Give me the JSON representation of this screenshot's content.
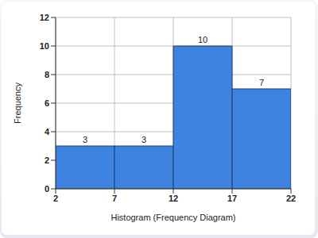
{
  "chart_data": {
    "type": "histogram",
    "x_label": "Histogram (Frequency Diagram)",
    "y_label": "Frequency",
    "bins": [
      2,
      7,
      12,
      17,
      22
    ],
    "values": [
      3,
      3,
      10,
      7
    ],
    "color": "#3f83e0",
    "xlim": [
      2,
      22
    ],
    "xticks": [
      2,
      7,
      12,
      17,
      22
    ],
    "ylim": [
      0,
      12
    ],
    "yticks": [
      0,
      2,
      4,
      6,
      8,
      10,
      12
    ],
    "grid": true,
    "data_labels": true
  }
}
